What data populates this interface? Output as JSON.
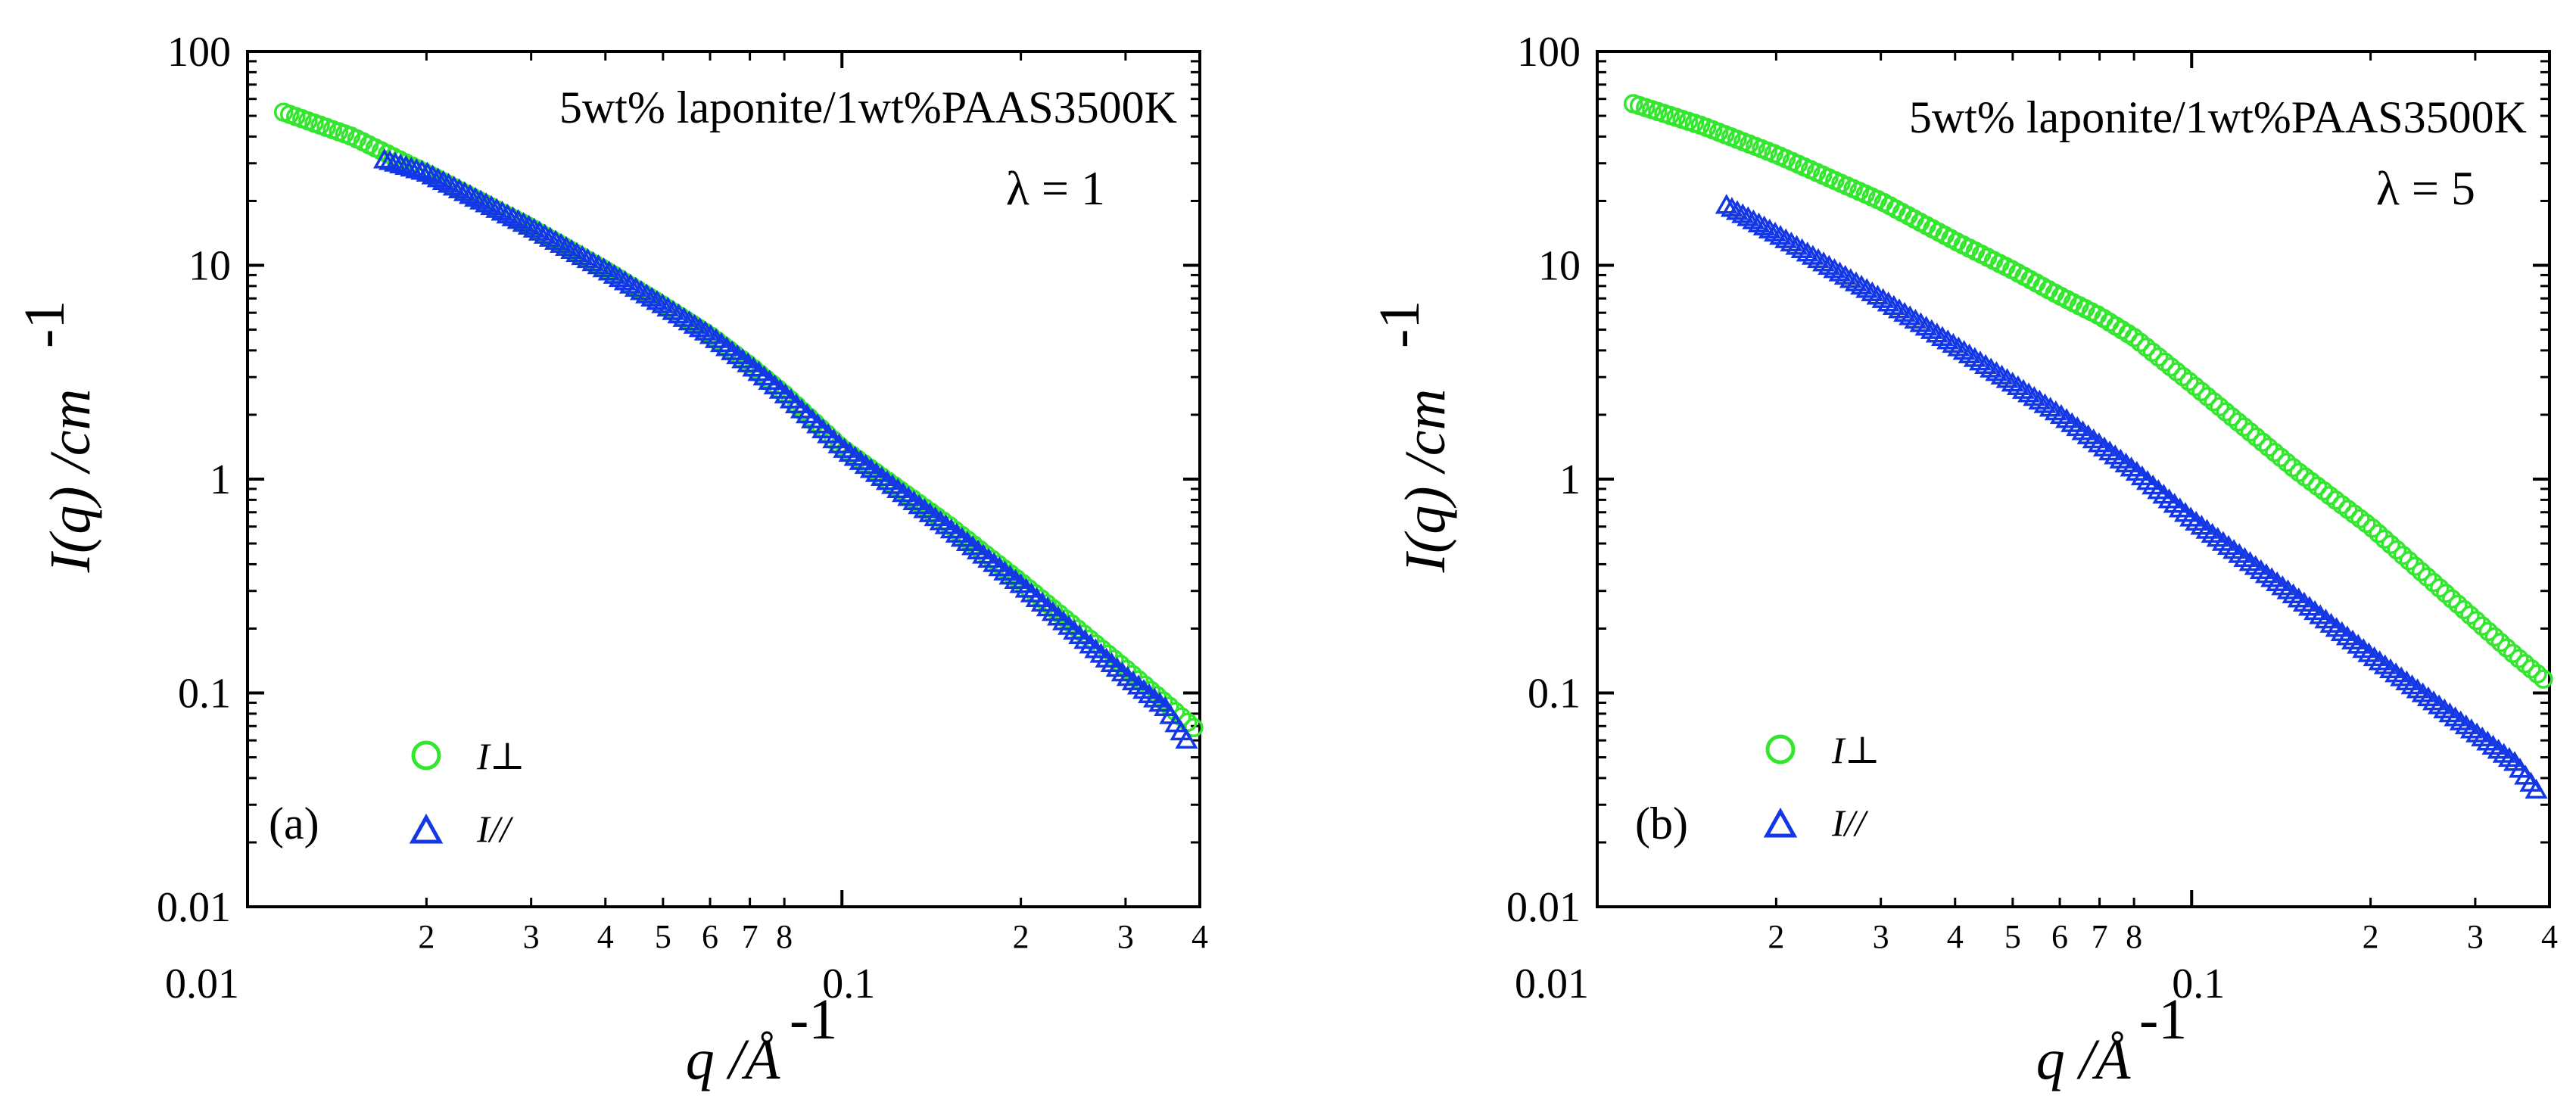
{
  "colors": {
    "perp": "#33e62e",
    "par": "#1437e6",
    "axis": "#000000"
  },
  "chart_data": [
    {
      "type": "scatter",
      "panel_label": "(a)",
      "annotation": "5wt% laponite/1wt%PAAS3500K",
      "lambda_label": "λ = 1",
      "xlabel": "q /Å",
      "xlabel_exp": "-1",
      "ylabel": "I(q) /cm",
      "ylabel_exp": "-1",
      "xscale": "log",
      "yscale": "log",
      "xlim": [
        0.01,
        0.4
      ],
      "ylim": [
        0.01,
        100
      ],
      "x_major_ticks": [
        "0.01",
        "0.1"
      ],
      "x_minor_tick_labels": [
        "2",
        "3",
        "4",
        "5",
        "6",
        "7",
        "8",
        "2",
        "3",
        "4"
      ],
      "y_ticks": [
        "0.01",
        "0.1",
        "1",
        "10",
        "100"
      ],
      "legend": {
        "placement": "lower-left",
        "entries": [
          "I⊥",
          "I//"
        ]
      },
      "series": [
        {
          "name": "I⊥",
          "marker": "circle",
          "x": [
            0.0115,
            0.015,
            0.02,
            0.03,
            0.04,
            0.05,
            0.06,
            0.07,
            0.08,
            0.1,
            0.15,
            0.2,
            0.3,
            0.35,
            0.4
          ],
          "y": [
            52,
            40,
            27,
            15,
            9.5,
            6.5,
            4.7,
            3.4,
            2.5,
            1.4,
            0.62,
            0.33,
            0.13,
            0.09,
            0.065
          ]
        },
        {
          "name": "I//",
          "marker": "triangle",
          "x": [
            0.017,
            0.02,
            0.03,
            0.04,
            0.05,
            0.06,
            0.07,
            0.08,
            0.1,
            0.15,
            0.2,
            0.3,
            0.35,
            0.38
          ],
          "y": [
            31,
            27,
            15,
            9.5,
            6.5,
            4.7,
            3.4,
            2.5,
            1.4,
            0.6,
            0.32,
            0.12,
            0.085,
            0.06
          ]
        }
      ]
    },
    {
      "type": "scatter",
      "panel_label": "(b)",
      "annotation": "5wt% laponite/1wt%PAAS3500K",
      "lambda_label": "λ = 5",
      "xlabel": "q /Å",
      "xlabel_exp": "-1",
      "ylabel": "I(q) /cm",
      "ylabel_exp": "-1",
      "xscale": "log",
      "yscale": "log",
      "xlim": [
        0.01,
        0.4
      ],
      "ylim": [
        0.01,
        100
      ],
      "x_major_ticks": [
        "0.01",
        "0.1"
      ],
      "x_minor_tick_labels": [
        "2",
        "3",
        "4",
        "5",
        "6",
        "7",
        "8",
        "2",
        "3",
        "4"
      ],
      "y_ticks": [
        "0.01",
        "0.1",
        "1",
        "10",
        "100"
      ],
      "legend": {
        "placement": "lower-left",
        "entries": [
          "I⊥",
          "I//"
        ]
      },
      "series": [
        {
          "name": "I⊥",
          "marker": "circle",
          "x": [
            0.0115,
            0.015,
            0.02,
            0.03,
            0.04,
            0.05,
            0.06,
            0.07,
            0.08,
            0.1,
            0.15,
            0.2,
            0.3,
            0.35,
            0.4
          ],
          "y": [
            57,
            45,
            33,
            20,
            13,
            9.5,
            7.2,
            5.8,
            4.6,
            2.8,
            1.1,
            0.6,
            0.22,
            0.15,
            0.11
          ]
        },
        {
          "name": "I//",
          "marker": "triangle",
          "x": [
            0.0165,
            0.02,
            0.03,
            0.04,
            0.05,
            0.06,
            0.07,
            0.08,
            0.1,
            0.15,
            0.2,
            0.3,
            0.35,
            0.38
          ],
          "y": [
            19,
            14,
            7,
            4.2,
            2.8,
            2.0,
            1.45,
            1.1,
            0.65,
            0.28,
            0.15,
            0.065,
            0.047,
            0.035
          ]
        }
      ]
    }
  ]
}
